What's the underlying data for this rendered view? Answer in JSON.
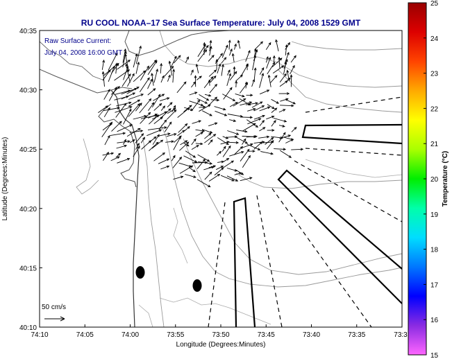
{
  "chart_data": {
    "type": "map",
    "title": "RU COOL  NOAA–17  Sea Surface Temperature:  July 04, 2008 1529 GMT",
    "annotation_lines": [
      "Raw Surface Current:",
      "July 04, 2008 16:00 GMT"
    ],
    "xlabel": "Longitude (Degrees:Minutes)",
    "ylabel": "Latitude (Degrees:Minutes)",
    "colorbar_label": "Temperature (°C)",
    "x_ticks": [
      "74:10",
      "74:05",
      "74:00",
      "73:55",
      "73:50",
      "73:45",
      "73:40",
      "73:35",
      "73:3"
    ],
    "y_ticks": [
      "40:35",
      "40:30",
      "40:25",
      "40:20",
      "40:15",
      "40:10"
    ],
    "xlim_deg": [
      -74.1667,
      -73.5
    ],
    "ylim_deg": [
      40.1667,
      40.5833
    ],
    "colorbar_ticks": [
      "25",
      "24",
      "23",
      "22",
      "21",
      "20",
      "19",
      "18",
      "17",
      "16",
      "15"
    ],
    "colorbar_range": [
      15,
      25
    ],
    "colorbar_colors": [
      "#ff66ff",
      "#8a2be2",
      "#0000ff",
      "#0077ff",
      "#00ddff",
      "#00ffaa",
      "#00ee00",
      "#aaff00",
      "#ffff00",
      "#ffaa00",
      "#ff4400",
      "#dd0000",
      "#990000"
    ],
    "scale_label": "50 cm/s",
    "scale_speed_cm_s": 50
  }
}
